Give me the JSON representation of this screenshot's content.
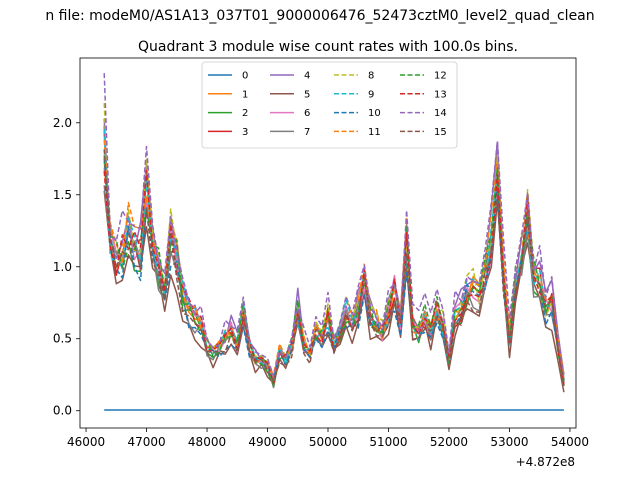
{
  "chart_data": {
    "type": "line",
    "title": "n file: modeM0/AS1A13_037T01_9000006476_52473cztM0_level2_quad_clean",
    "subtitle": "Quadrant 3 module wise count rates with 100.0s bins.",
    "xlabel": "",
    "ylabel": "",
    "x_offset_label": "+4.872e8",
    "xlim": [
      45900,
      54100
    ],
    "ylim": [
      -0.12,
      2.45
    ],
    "x_ticks": [
      46000,
      47000,
      48000,
      49000,
      50000,
      51000,
      52000,
      53000,
      54000
    ],
    "y_ticks": [
      0.0,
      0.5,
      1.0,
      1.5,
      2.0
    ],
    "x_tick_labels": [
      "46000",
      "47000",
      "48000",
      "49000",
      "50000",
      "51000",
      "52000",
      "53000",
      "54000"
    ],
    "y_tick_labels": [
      "0.0",
      "0.5",
      "1.0",
      "1.5",
      "2.0"
    ],
    "grid": false,
    "legend": {
      "placement": "top-center",
      "columns": 4
    },
    "x": [
      46300,
      46400,
      46500,
      46600,
      46700,
      46800,
      46900,
      47000,
      47100,
      47200,
      47300,
      47400,
      47500,
      47600,
      47700,
      47800,
      47900,
      48000,
      48100,
      48200,
      48300,
      48400,
      48500,
      48600,
      48700,
      48800,
      48900,
      49000,
      49100,
      49200,
      49300,
      49400,
      49500,
      49600,
      49700,
      49800,
      49900,
      50000,
      50100,
      50200,
      50300,
      50400,
      50500,
      50600,
      50700,
      50800,
      50900,
      51000,
      51100,
      51200,
      51300,
      51400,
      51500,
      51600,
      51700,
      51800,
      51900,
      52000,
      52100,
      52200,
      52300,
      52400,
      52500,
      52600,
      52700,
      52800,
      52900,
      53000,
      53100,
      53200,
      53300,
      53400,
      53500,
      53600,
      53700,
      53800,
      53900
    ],
    "base_profile": [
      1.85,
      1.2,
      1.05,
      1.1,
      1.25,
      1.15,
      1.1,
      1.55,
      1.2,
      1.0,
      0.75,
      1.2,
      1.05,
      0.8,
      0.7,
      0.65,
      0.6,
      0.45,
      0.4,
      0.45,
      0.5,
      0.55,
      0.45,
      0.7,
      0.45,
      0.35,
      0.35,
      0.3,
      0.2,
      0.4,
      0.35,
      0.45,
      0.7,
      0.45,
      0.4,
      0.55,
      0.5,
      0.65,
      0.45,
      0.55,
      0.7,
      0.6,
      0.7,
      0.9,
      0.65,
      0.6,
      0.55,
      0.7,
      0.85,
      0.6,
      1.15,
      0.6,
      0.55,
      0.65,
      0.55,
      0.7,
      0.6,
      0.35,
      0.65,
      0.7,
      0.85,
      0.85,
      0.8,
      0.95,
      1.2,
      1.75,
      0.95,
      0.5,
      0.9,
      1.05,
      1.35,
      0.95,
      0.9,
      0.7,
      0.75,
      0.45,
      0.2
    ],
    "series": [
      {
        "name": "0",
        "color": "#1f77b4",
        "style": "solid",
        "values": [
          0.005,
          0.005,
          0.005,
          0.005,
          0.005,
          0.005,
          0.005,
          0.005,
          0.005,
          0.005,
          0.005,
          0.005,
          0.005,
          0.005,
          0.005,
          0.005,
          0.005,
          0.005,
          0.005,
          0.005,
          0.005,
          0.005,
          0.005,
          0.005,
          0.005,
          0.005,
          0.005,
          0.005,
          0.005,
          0.005,
          0.005,
          0.005,
          0.005,
          0.005,
          0.005,
          0.005,
          0.005,
          0.005,
          0.005,
          0.005,
          0.005,
          0.005,
          0.005,
          0.005,
          0.005,
          0.005,
          0.005,
          0.005,
          0.005,
          0.005,
          0.005,
          0.005,
          0.005,
          0.005,
          0.005,
          0.005,
          0.005,
          0.005,
          0.005,
          0.005,
          0.005,
          0.005,
          0.005,
          0.005,
          0.005,
          0.005,
          0.005,
          0.005,
          0.005,
          0.005,
          0.005,
          0.005,
          0.005,
          0.005,
          0.005,
          0.005,
          0.005
        ]
      },
      {
        "name": "1",
        "color": "#ff7f0e",
        "style": "solid",
        "scale": 1.02,
        "noise": 0.12
      },
      {
        "name": "2",
        "color": "#2ca02c",
        "style": "solid",
        "scale": 0.97,
        "noise": 0.13
      },
      {
        "name": "3",
        "color": "#d62728",
        "style": "solid",
        "scale": 1.0,
        "noise": 0.11
      },
      {
        "name": "4",
        "color": "#9467bd",
        "style": "solid",
        "scale": 1.08,
        "noise": 0.14
      },
      {
        "name": "5",
        "color": "#8c564b",
        "style": "solid",
        "scale": 0.85,
        "noise": 0.12
      },
      {
        "name": "6",
        "color": "#e377c2",
        "style": "solid",
        "scale": 1.0,
        "noise": 0.12
      },
      {
        "name": "7",
        "color": "#7f7f7f",
        "style": "solid",
        "scale": 0.95,
        "noise": 0.12
      },
      {
        "name": "8",
        "color": "#bcbd22",
        "style": "dashed",
        "scale": 1.05,
        "noise": 0.13
      },
      {
        "name": "9",
        "color": "#17becf",
        "style": "dashed",
        "scale": 1.0,
        "noise": 0.12
      },
      {
        "name": "10",
        "color": "#1f77b4",
        "style": "dashed",
        "scale": 0.93,
        "noise": 0.12
      },
      {
        "name": "11",
        "color": "#ff7f0e",
        "style": "dashed",
        "scale": 1.04,
        "noise": 0.13
      },
      {
        "name": "12",
        "color": "#2ca02c",
        "style": "dashed",
        "scale": 1.02,
        "noise": 0.12
      },
      {
        "name": "13",
        "color": "#d62728",
        "style": "dashed",
        "scale": 1.0,
        "noise": 0.12
      },
      {
        "name": "14",
        "color": "#9467bd",
        "style": "dashed",
        "scale": 1.15,
        "noise": 0.14
      },
      {
        "name": "15",
        "color": "#8c564b",
        "style": "dashed",
        "scale": 0.92,
        "noise": 0.12
      }
    ]
  }
}
